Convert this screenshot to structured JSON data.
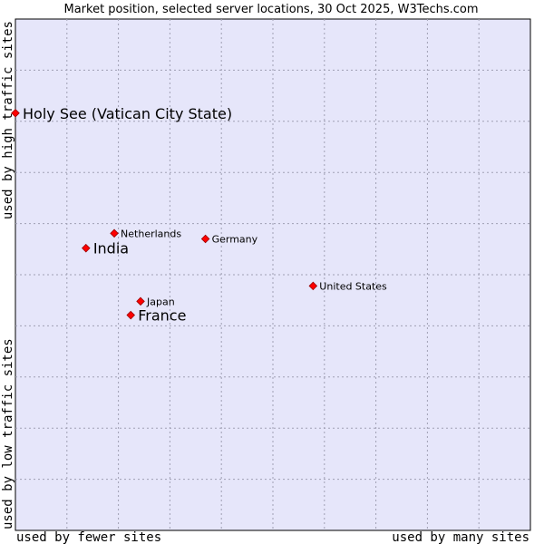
{
  "chart_data": {
    "type": "scatter",
    "title": "Market position, selected server locations, 30 Oct 2025, W3Techs.com",
    "xlabel_left": "used by fewer sites",
    "xlabel_right": "used by many sites",
    "ylabel_low": "used by low traffic sites",
    "ylabel_high": "used by high traffic sites",
    "x_range": [
      0,
      100
    ],
    "y_range": [
      0,
      100
    ],
    "grid": true,
    "colors": {
      "plot_background": "#e6e6fa",
      "grid": "#a0a0b4",
      "point": "#ff0000",
      "point_outline": "#990000"
    },
    "points": [
      {
        "label": "Holy See (Vatican City State)",
        "x": 0.0,
        "y": 81.6,
        "highlight": true
      },
      {
        "label": "Netherlands",
        "x": 19.2,
        "y": 58.1,
        "highlight": false
      },
      {
        "label": "India",
        "x": 13.7,
        "y": 55.2,
        "highlight": true
      },
      {
        "label": "Germany",
        "x": 36.9,
        "y": 57.0,
        "highlight": false
      },
      {
        "label": "Japan",
        "x": 24.3,
        "y": 44.8,
        "highlight": false
      },
      {
        "label": "France",
        "x": 22.4,
        "y": 42.1,
        "highlight": true
      },
      {
        "label": "United States",
        "x": 57.8,
        "y": 47.8,
        "highlight": false
      }
    ]
  }
}
